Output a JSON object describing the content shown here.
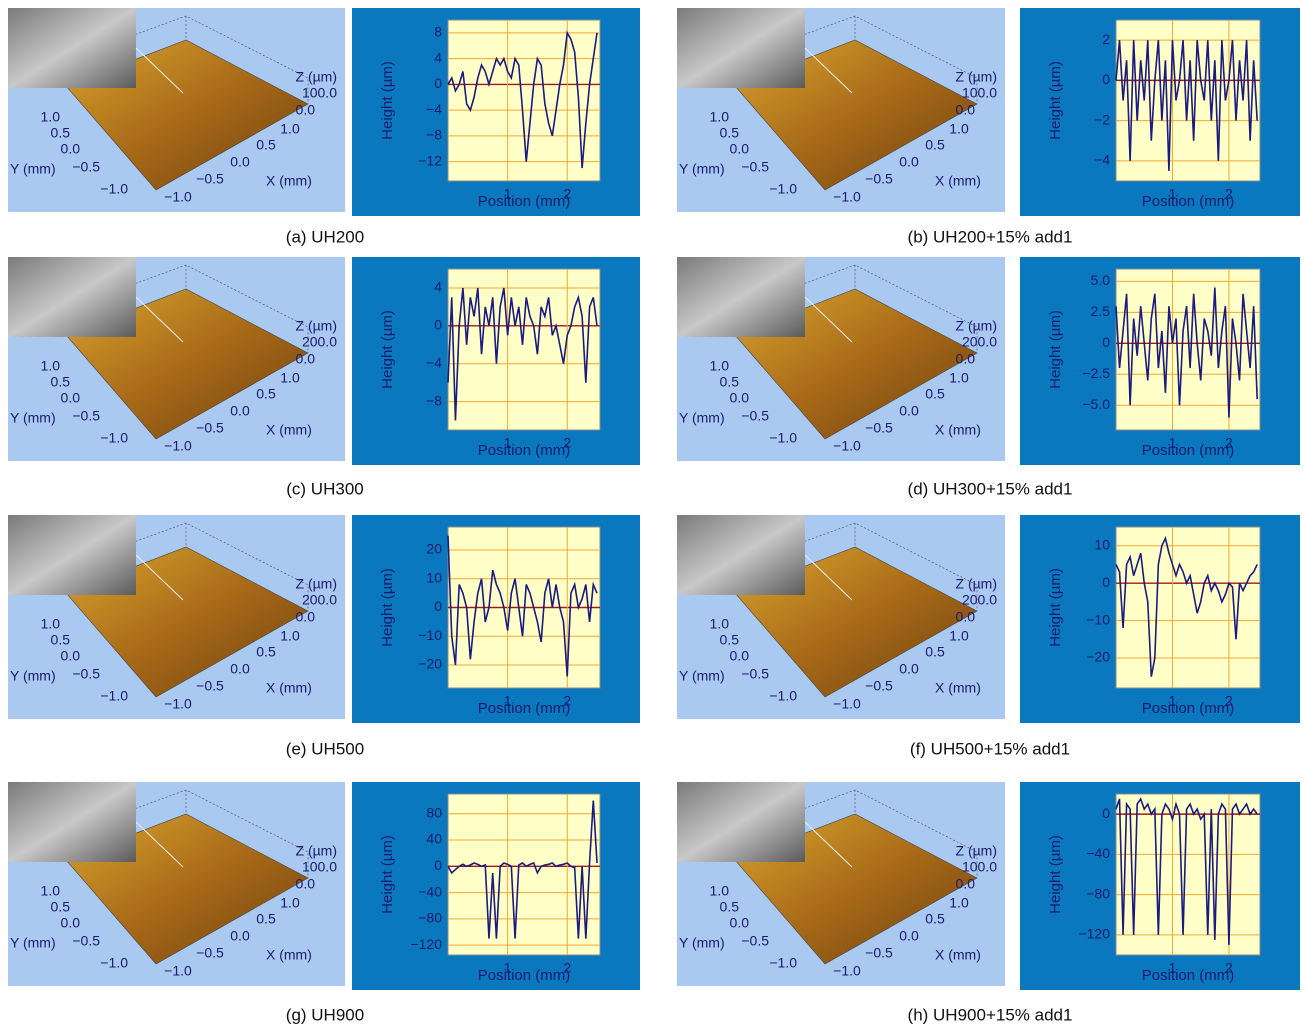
{
  "figure": {
    "panels": [
      {
        "caption": "(a) UH200",
        "surface": {
          "z_label": "Z (µm)",
          "z_ticks": [
            "100.0",
            "0.0"
          ],
          "y_label": "Y (mm)",
          "y_ticks": [
            "1.0",
            "0.5",
            "0.0",
            "−0.5",
            "−1.0"
          ],
          "x_label": "X (mm)",
          "x_ticks": [
            "1.0",
            "0.5",
            "0.0",
            "−0.5",
            "−1.0"
          ]
        }
      },
      {
        "caption": "(b) UH200+15% add1",
        "surface": {
          "z_label": "Z (µm)",
          "z_ticks": [
            "100.0",
            "0.0"
          ],
          "y_label": "Y (mm)",
          "y_ticks": [
            "1.0",
            "0.5",
            "0.0",
            "−0.5",
            "−1.0"
          ],
          "x_label": "X (mm)",
          "x_ticks": [
            "1.0",
            "0.5",
            "0.0",
            "−0.5",
            "−1.0"
          ]
        }
      },
      {
        "caption": "(c) UH300",
        "surface": {
          "z_label": "Z (µm)",
          "z_ticks": [
            "200.0",
            "0.0"
          ],
          "y_label": "Y (mm)",
          "y_ticks": [
            "1.0",
            "0.5",
            "0.0",
            "−0.5",
            "−1.0"
          ],
          "x_label": "X (mm)",
          "x_ticks": [
            "1.0",
            "0.5",
            "0.0",
            "−0.5",
            "−1.0"
          ]
        }
      },
      {
        "caption": "(d) UH300+15% add1",
        "surface": {
          "z_label": "Z (µm)",
          "z_ticks": [
            "200.0",
            "0.0"
          ],
          "y_label": "Y (mm)",
          "y_ticks": [
            "1.0",
            "0.5",
            "0.0",
            "−0.5",
            "−1.0"
          ],
          "x_label": "X (mm)",
          "x_ticks": [
            "1.0",
            "0.5",
            "0.0",
            "−0.5",
            "−1.0"
          ]
        }
      },
      {
        "caption": "(e) UH500",
        "surface": {
          "z_label": "Z (µm)",
          "z_ticks": [
            "200.0",
            "0.0"
          ],
          "y_label": "Y (mm)",
          "y_ticks": [
            "1.0",
            "0.5",
            "0.0",
            "−0.5",
            "−1.0"
          ],
          "x_label": "X (mm)",
          "x_ticks": [
            "1.0",
            "0.5",
            "0.0",
            "−0.5",
            "−1.0"
          ]
        }
      },
      {
        "caption": "(f) UH500+15% add1",
        "surface": {
          "z_label": "Z (µm)",
          "z_ticks": [
            "200.0",
            "0.0"
          ],
          "y_label": "Y (mm)",
          "y_ticks": [
            "1.0",
            "0.5",
            "0.0",
            "−0.5",
            "−1.0"
          ],
          "x_label": "X (mm)",
          "x_ticks": [
            "1.0",
            "0.5",
            "0.0",
            "−0.5",
            "−1.0"
          ]
        }
      },
      {
        "caption": "(g) UH900",
        "surface": {
          "z_label": "Z (µm)",
          "z_ticks": [
            "100.0",
            "0.0"
          ],
          "y_label": "Y (mm)",
          "y_ticks": [
            "1.0",
            "0.5",
            "0.0",
            "−0.5",
            "−1.0"
          ],
          "x_label": "X (mm)",
          "x_ticks": [
            "1.0",
            "0.5",
            "0.0",
            "−0.5",
            "−1.0"
          ]
        }
      },
      {
        "caption": "(h) UH900+15% add1",
        "surface": {
          "z_label": "Z (µm)",
          "z_ticks": [
            "100.0",
            "0.0"
          ],
          "y_label": "Y (mm)",
          "y_ticks": [
            "1.0",
            "0.5",
            "0.0",
            "−0.5",
            "−1.0"
          ],
          "x_label": "X (mm)",
          "x_ticks": [
            "1.0",
            "0.5",
            "0.0",
            "−0.5",
            "−1.0"
          ]
        }
      }
    ]
  },
  "chart_data": [
    {
      "type": "line",
      "x_label": "Position (mm)",
      "y_label": "Height (µm)",
      "color": "#1a1a80",
      "grid": true,
      "xlim": [
        0,
        2.55
      ],
      "xticks": [
        1,
        2
      ],
      "ylim": [
        -15,
        10
      ],
      "yticks": [
        8,
        4,
        0,
        {
          "value": -4,
          "label": "−4"
        },
        {
          "value": -8,
          "label": "−8"
        },
        {
          "value": -12,
          "label": "−12"
        }
      ],
      "x": [
        0,
        0.0625,
        0.125,
        0.1875,
        0.25,
        0.3125,
        0.375,
        0.4375,
        0.5,
        0.5625,
        0.625,
        0.6875,
        0.75,
        0.8125,
        0.875,
        0.9375,
        1,
        1.0625,
        1.125,
        1.1875,
        1.25,
        1.3125,
        1.375,
        1.4375,
        1.5,
        1.5625,
        1.625,
        1.6875,
        1.75,
        1.8125,
        1.875,
        1.9375,
        2,
        2.0625,
        2.125,
        2.1875,
        2.25,
        2.3125,
        2.375,
        2.4375,
        2.5
      ],
      "values": [
        0,
        1,
        -1,
        0,
        2,
        -3,
        -4,
        -2,
        1,
        3,
        2,
        0,
        2,
        4,
        3,
        4,
        2,
        1,
        4,
        3,
        -4,
        -12,
        -6,
        0,
        4,
        3,
        -3,
        -6,
        -8,
        -4,
        0,
        3,
        8,
        7,
        5,
        -2,
        -13,
        -6,
        0,
        4,
        8
      ]
    },
    {
      "type": "line",
      "x_label": "Position (mm)",
      "y_label": "Height (µm)",
      "color": "#1a1a80",
      "grid": true,
      "xlim": [
        0,
        2.55
      ],
      "xticks": [
        1,
        2
      ],
      "ylim": [
        -5,
        3
      ],
      "yticks": [
        2,
        0,
        {
          "value": -2,
          "label": "−2"
        },
        {
          "value": -4,
          "label": "−4"
        }
      ],
      "x": [
        0,
        0.0625,
        0.125,
        0.1875,
        0.25,
        0.3125,
        0.375,
        0.4375,
        0.5,
        0.5625,
        0.625,
        0.6875,
        0.75,
        0.8125,
        0.875,
        0.9375,
        1,
        1.0625,
        1.125,
        1.1875,
        1.25,
        1.3125,
        1.375,
        1.4375,
        1.5,
        1.5625,
        1.625,
        1.6875,
        1.75,
        1.8125,
        1.875,
        1.9375,
        2,
        2.0625,
        2.125,
        2.1875,
        2.25,
        2.3125,
        2.375,
        2.4375,
        2.5
      ],
      "values": [
        0,
        2,
        -1,
        1,
        -4,
        2,
        -2,
        1,
        -1,
        2,
        -3,
        0,
        2,
        -2,
        1,
        -4.5,
        2,
        -1,
        0,
        2,
        -2,
        1,
        -3,
        2,
        0,
        -1,
        2,
        -2,
        1,
        -4,
        2,
        -1,
        0,
        2,
        -2,
        1,
        -1,
        2,
        -3,
        1,
        -2
      ]
    },
    {
      "type": "line",
      "x_label": "Position (mm)",
      "y_label": "Height (µm)",
      "color": "#1a1a80",
      "grid": true,
      "xlim": [
        0,
        2.55
      ],
      "xticks": [
        1,
        2
      ],
      "ylim": [
        -11,
        6
      ],
      "yticks": [
        4,
        0,
        {
          "value": -4,
          "label": "−4"
        },
        {
          "value": -8,
          "label": "−8"
        }
      ],
      "x": [
        0,
        0.0625,
        0.125,
        0.1875,
        0.25,
        0.3125,
        0.375,
        0.4375,
        0.5,
        0.5625,
        0.625,
        0.6875,
        0.75,
        0.8125,
        0.875,
        0.9375,
        1,
        1.0625,
        1.125,
        1.1875,
        1.25,
        1.3125,
        1.375,
        1.4375,
        1.5,
        1.5625,
        1.625,
        1.6875,
        1.75,
        1.8125,
        1.875,
        1.9375,
        2,
        2.0625,
        2.125,
        2.1875,
        2.25,
        2.3125,
        2.375,
        2.4375,
        2.5
      ],
      "values": [
        -6,
        3,
        -10,
        0,
        4,
        -2,
        3,
        1,
        4,
        -3,
        2,
        0,
        3,
        -4,
        2,
        4,
        -1,
        3,
        0,
        2,
        -2,
        3,
        1,
        0,
        -3,
        2,
        1,
        3,
        -1,
        0,
        -2,
        -4,
        -1,
        0,
        2,
        3,
        1,
        -6,
        2,
        3,
        0
      ]
    },
    {
      "type": "line",
      "x_label": "Position (mm)",
      "y_label": "Height (µm)",
      "color": "#1a1a80",
      "grid": true,
      "xlim": [
        0,
        2.55
      ],
      "xticks": [
        1,
        2
      ],
      "ylim": [
        -7,
        6
      ],
      "yticks": [
        {
          "value": 5,
          "label": "5.0"
        },
        2.5,
        0,
        {
          "value": -2.5,
          "label": "−2.5"
        },
        {
          "value": -5,
          "label": "−5.0"
        }
      ],
      "x": [
        0,
        0.0625,
        0.125,
        0.1875,
        0.25,
        0.3125,
        0.375,
        0.4375,
        0.5,
        0.5625,
        0.625,
        0.6875,
        0.75,
        0.8125,
        0.875,
        0.9375,
        1,
        1.0625,
        1.125,
        1.1875,
        1.25,
        1.3125,
        1.375,
        1.4375,
        1.5,
        1.5625,
        1.625,
        1.6875,
        1.75,
        1.8125,
        1.875,
        1.9375,
        2,
        2.0625,
        2.125,
        2.1875,
        2.25,
        2.3125,
        2.375,
        2.4375,
        2.5
      ],
      "values": [
        3,
        -2,
        1,
        4,
        -5,
        2,
        -1,
        3,
        0,
        -3,
        2,
        4,
        -2,
        1,
        -4,
        3,
        0,
        2,
        -5,
        1,
        3,
        -2,
        4,
        0,
        -3,
        2,
        1,
        -1,
        4.5,
        -2,
        1,
        3,
        -6,
        2,
        0,
        -3,
        4,
        1,
        -2,
        3,
        -4.5
      ]
    },
    {
      "type": "line",
      "x_label": "Position (mm)",
      "y_label": "Height (µm)",
      "color": "#1a1a80",
      "grid": true,
      "xlim": [
        0,
        2.55
      ],
      "xticks": [
        1,
        2
      ],
      "ylim": [
        -28,
        28
      ],
      "yticks": [
        20,
        10,
        0,
        {
          "value": -10,
          "label": "−10"
        },
        {
          "value": -20,
          "label": "−20"
        }
      ],
      "x": [
        0,
        0.0625,
        0.125,
        0.1875,
        0.25,
        0.3125,
        0.375,
        0.4375,
        0.5,
        0.5625,
        0.625,
        0.6875,
        0.75,
        0.8125,
        0.875,
        0.9375,
        1,
        1.0625,
        1.125,
        1.1875,
        1.25,
        1.3125,
        1.375,
        1.4375,
        1.5,
        1.5625,
        1.625,
        1.6875,
        1.75,
        1.8125,
        1.875,
        1.9375,
        2,
        2.0625,
        2.125,
        2.1875,
        2.25,
        2.3125,
        2.375,
        2.4375,
        2.5
      ],
      "values": [
        25,
        -10,
        -20,
        8,
        5,
        0,
        -18,
        -5,
        5,
        10,
        -5,
        0,
        13,
        8,
        5,
        0,
        -8,
        5,
        10,
        0,
        -10,
        8,
        5,
        0,
        -5,
        -12,
        5,
        10,
        0,
        8,
        0,
        -5,
        -24,
        5,
        8,
        0,
        3,
        8,
        -5,
        8,
        5
      ]
    },
    {
      "type": "line",
      "x_label": "Position (mm)",
      "y_label": "Height (µm)",
      "color": "#1a1a80",
      "grid": true,
      "xlim": [
        0,
        2.55
      ],
      "xticks": [
        1,
        2
      ],
      "ylim": [
        -28,
        15
      ],
      "yticks": [
        10,
        0,
        {
          "value": -10,
          "label": "−10"
        },
        {
          "value": -20,
          "label": "−20"
        }
      ],
      "x": [
        0,
        0.0625,
        0.125,
        0.1875,
        0.25,
        0.3125,
        0.375,
        0.4375,
        0.5,
        0.5625,
        0.625,
        0.6875,
        0.75,
        0.8125,
        0.875,
        0.9375,
        1,
        1.0625,
        1.125,
        1.1875,
        1.25,
        1.3125,
        1.375,
        1.4375,
        1.5,
        1.5625,
        1.625,
        1.6875,
        1.75,
        1.8125,
        1.875,
        1.9375,
        2,
        2.0625,
        2.125,
        2.1875,
        2.25,
        2.3125,
        2.375,
        2.4375,
        2.5
      ],
      "values": [
        5,
        3,
        -12,
        5,
        7,
        2,
        5,
        8,
        0,
        -5,
        -25,
        -20,
        5,
        10,
        12,
        8,
        5,
        2,
        5,
        3,
        0,
        2,
        -3,
        -8,
        -5,
        0,
        2,
        -2,
        0,
        -2,
        -5,
        -3,
        0,
        -1,
        -15,
        0,
        -2,
        0,
        2,
        3,
        5
      ]
    },
    {
      "type": "line",
      "x_label": "Position (mm)",
      "y_label": "Height (µm)",
      "color": "#1a1a80",
      "grid": true,
      "xlim": [
        0,
        2.55
      ],
      "xticks": [
        1,
        2
      ],
      "ylim": [
        -135,
        110
      ],
      "yticks": [
        80,
        40,
        0,
        {
          "value": -40,
          "label": "−40"
        },
        {
          "value": -80,
          "label": "−80"
        },
        {
          "value": -120,
          "label": "−120"
        }
      ],
      "x": [
        0,
        0.0625,
        0.125,
        0.1875,
        0.25,
        0.3125,
        0.375,
        0.4375,
        0.5,
        0.5625,
        0.625,
        0.6875,
        0.75,
        0.8125,
        0.875,
        0.9375,
        1,
        1.0625,
        1.125,
        1.1875,
        1.25,
        1.3125,
        1.375,
        1.4375,
        1.5,
        1.5625,
        1.625,
        1.6875,
        1.75,
        1.8125,
        1.875,
        1.9375,
        2,
        2.0625,
        2.125,
        2.1875,
        2.25,
        2.3125,
        2.375,
        2.4375,
        2.5
      ],
      "values": [
        0,
        -10,
        -5,
        0,
        3,
        0,
        2,
        5,
        3,
        0,
        2,
        -110,
        -10,
        -110,
        0,
        5,
        3,
        0,
        -110,
        2,
        5,
        0,
        3,
        5,
        -10,
        0,
        2,
        3,
        5,
        0,
        2,
        3,
        5,
        0,
        -2,
        -110,
        0,
        -110,
        5,
        100,
        5
      ]
    },
    {
      "type": "line",
      "x_label": "Position (mm)",
      "y_label": "Height (µm)",
      "color": "#1a1a80",
      "grid": true,
      "xlim": [
        0,
        2.55
      ],
      "xticks": [
        1,
        2
      ],
      "ylim": [
        -140,
        20
      ],
      "yticks": [
        0,
        {
          "value": -40,
          "label": "−40"
        },
        {
          "value": -80,
          "label": "−80"
        },
        {
          "value": -120,
          "label": "−120"
        }
      ],
      "x": [
        0,
        0.0625,
        0.125,
        0.1875,
        0.25,
        0.3125,
        0.375,
        0.4375,
        0.5,
        0.5625,
        0.625,
        0.6875,
        0.75,
        0.8125,
        0.875,
        0.9375,
        1,
        1.0625,
        1.125,
        1.1875,
        1.25,
        1.3125,
        1.375,
        1.4375,
        1.5,
        1.5625,
        1.625,
        1.6875,
        1.75,
        1.8125,
        1.875,
        1.9375,
        2,
        2.0625,
        2.125,
        2.1875,
        2.25,
        2.3125,
        2.375,
        2.4375,
        2.5
      ],
      "values": [
        5,
        15,
        -120,
        10,
        5,
        -120,
        10,
        15,
        5,
        10,
        0,
        5,
        -120,
        0,
        10,
        5,
        -5,
        10,
        0,
        -120,
        5,
        10,
        0,
        5,
        -5,
        0,
        -120,
        5,
        -125,
        0,
        10,
        5,
        -130,
        5,
        10,
        0,
        5,
        10,
        0,
        5,
        0
      ]
    }
  ]
}
